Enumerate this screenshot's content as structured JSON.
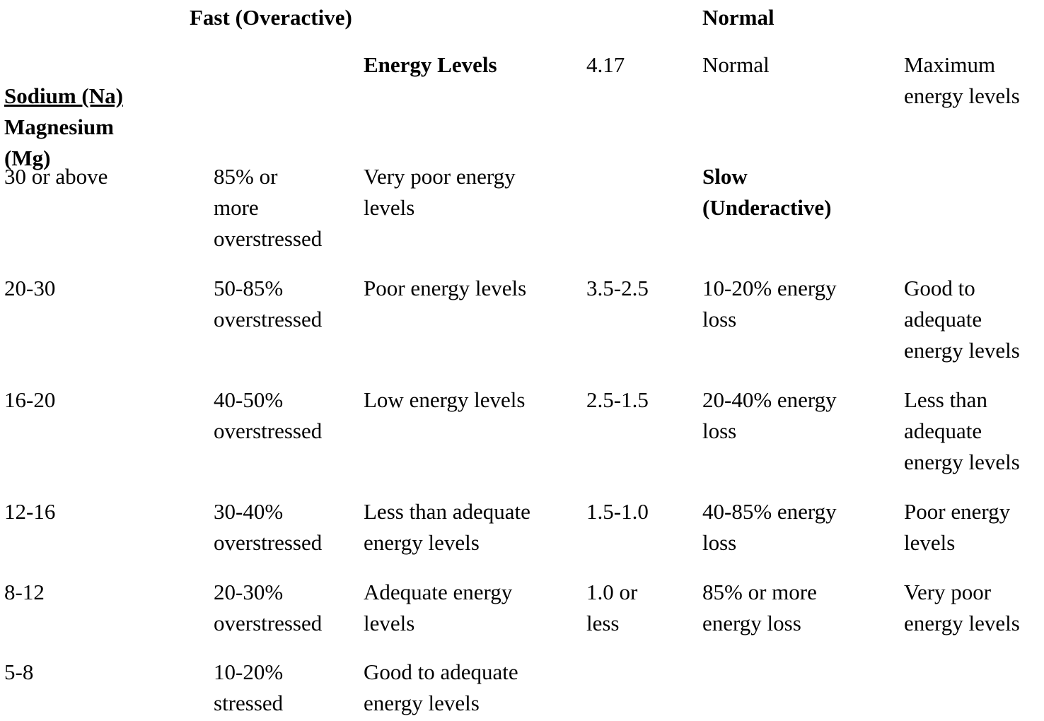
{
  "section_titles": {
    "fast": "Fast (Overactive)",
    "normal": "Normal",
    "slow": "Slow\n(Underactive)"
  },
  "header_row": {
    "sodium_label": "Sodium (Na)",
    "magnesium_label": "Magnesium\n(Mg)",
    "energy_levels_label": "Energy Levels",
    "normal_ratio": "4.17",
    "normal_status": "Normal",
    "normal_energy": "Maximum\nenergy levels"
  },
  "fast_rows": [
    {
      "ratio": "30 or above",
      "stress": "85% or\nmore\noverstressed",
      "energy": "Very poor energy\nlevels"
    },
    {
      "ratio": "20-30",
      "stress": "50-85%\noverstressed",
      "energy": "Poor energy levels"
    },
    {
      "ratio": "16-20",
      "stress": "40-50%\noverstressed",
      "energy": "Low energy levels"
    },
    {
      "ratio": "12-16",
      "stress": "30-40%\noverstressed",
      "energy": "Less than adequate\nenergy levels"
    },
    {
      "ratio": "8-12",
      "stress": "20-30%\noverstressed",
      "energy": "Adequate energy\nlevels"
    },
    {
      "ratio": "5-8",
      "stress": "10-20%\nstressed",
      "energy": "Good to adequate\nenergy levels"
    }
  ],
  "slow_rows": [
    {
      "ratio": "3.5-2.5",
      "loss": "10-20% energy\nloss",
      "energy": "Good to\nadequate\nenergy levels"
    },
    {
      "ratio": "2.5-1.5",
      "loss": "20-40% energy\nloss",
      "energy": "Less than\nadequate\nenergy levels"
    },
    {
      "ratio": "1.5-1.0",
      "loss": "40-85% energy\nloss",
      "energy": "Poor energy\nlevels"
    },
    {
      "ratio": "1.0 or\nless",
      "loss": "85% or more\nenergy loss",
      "energy": "Very poor\nenergy levels"
    }
  ]
}
